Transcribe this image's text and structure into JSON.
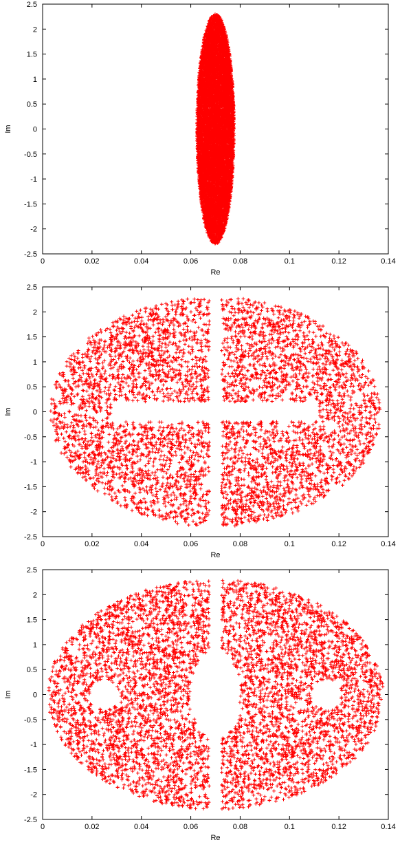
{
  "chart_data": [
    {
      "type": "scatter",
      "xlabel": "Re",
      "ylabel": "Im",
      "xlim": [
        0,
        0.14
      ],
      "ylim": [
        -2.5,
        2.5
      ],
      "xticks": [
        "0",
        "0.02",
        "0.04",
        "0.06",
        "0.08",
        "0.1",
        "0.12",
        "0.14"
      ],
      "yticks": [
        "2.5",
        "2",
        "1.5",
        "1",
        "0.5",
        "0",
        "-0.5",
        "-1",
        "-1.5",
        "-2",
        "-2.5"
      ],
      "grid": false,
      "legend": "none",
      "marker": "+",
      "color": "#ff0000",
      "points_approx_count": 10000,
      "distribution": {
        "shape": "ellipse",
        "center": [
          0.07,
          0.0
        ],
        "re_half_width": 0.0075,
        "im_half_height": 2.3,
        "gaps": []
      }
    },
    {
      "type": "scatter",
      "xlabel": "Re",
      "ylabel": "Im",
      "xlim": [
        0,
        0.14
      ],
      "ylim": [
        -2.5,
        2.5
      ],
      "xticks": [
        "0",
        "0.02",
        "0.04",
        "0.06",
        "0.08",
        "0.1",
        "0.12",
        "0.14"
      ],
      "yticks": [
        "2.5",
        "2",
        "1.5",
        "1",
        "0.5",
        "0",
        "-0.5",
        "-1",
        "-1.5",
        "-2",
        "-2.5"
      ],
      "grid": false,
      "legend": "none",
      "marker": "+",
      "color": "#ff0000",
      "points_approx_count": 5000,
      "distribution": {
        "shape": "ellipse",
        "center": [
          0.07,
          0.0
        ],
        "re_half_width": 0.067,
        "im_half_height": 2.3,
        "gaps": [
          {
            "type": "vertical-band",
            "re": 0.07,
            "half_width": 0.0025
          },
          {
            "type": "horizontal-band",
            "im": 0.0,
            "half_height": 0.2,
            "outer_re_distance": 0.025
          }
        ]
      }
    },
    {
      "type": "scatter",
      "xlabel": "Re",
      "ylabel": "Im",
      "xlim": [
        0,
        0.14
      ],
      "ylim": [
        -2.5,
        2.5
      ],
      "xticks": [
        "0",
        "0.02",
        "0.04",
        "0.06",
        "0.08",
        "0.1",
        "0.12",
        "0.14"
      ],
      "yticks": [
        "2.5",
        "2",
        "1.5",
        "1",
        "0.5",
        "0",
        "-0.5",
        "-1",
        "-1.5",
        "-2",
        "-2.5"
      ],
      "grid": false,
      "legend": "none",
      "marker": "+",
      "color": "#ff0000",
      "points_approx_count": 5500,
      "distribution": {
        "shape": "ellipse",
        "center": [
          0.07,
          0.0
        ],
        "re_half_width": 0.068,
        "im_half_height": 2.3,
        "gaps": [
          {
            "type": "vertical-band",
            "re": 0.07,
            "half_width": 0.0025
          },
          {
            "type": "hole",
            "center": [
              0.07,
              0.0
            ],
            "re_radius": 0.01,
            "im_radius": 0.9
          },
          {
            "type": "hole",
            "center": [
              0.025,
              0.0
            ],
            "re_radius": 0.006,
            "im_radius": 0.3
          },
          {
            "type": "hole",
            "center": [
              0.115,
              0.0
            ],
            "re_radius": 0.006,
            "im_radius": 0.3
          }
        ]
      }
    }
  ]
}
